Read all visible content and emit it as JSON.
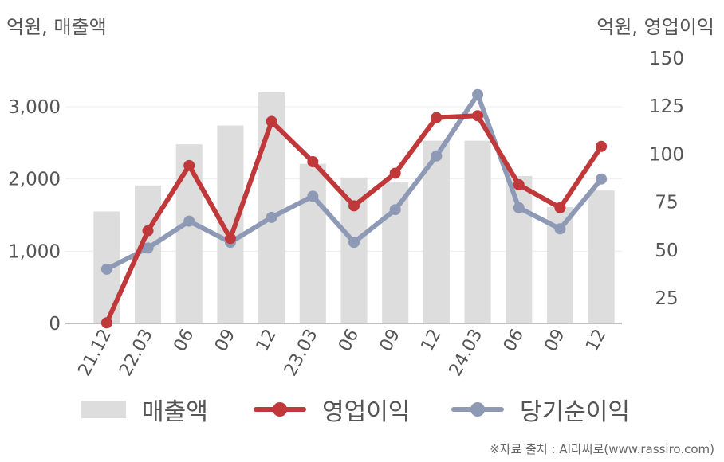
{
  "chart_data": {
    "type": "bar",
    "categories": [
      "21.12",
      "22.03",
      "06",
      "09",
      "12",
      "23.03",
      "06",
      "09",
      "12",
      "24.03",
      "06",
      "09",
      "12"
    ],
    "series": [
      {
        "name": "매출액",
        "type": "bar",
        "axis": "left",
        "color": "#dddddd",
        "values": [
          1550,
          1910,
          2480,
          2740,
          3200,
          2210,
          2020,
          1960,
          2530,
          2530,
          2040,
          1610,
          1840
        ]
      },
      {
        "name": "영업이익",
        "type": "line",
        "axis": "right",
        "color": "#c0383a",
        "values": [
          12,
          60,
          94,
          56,
          117,
          96,
          73,
          90,
          119,
          120,
          84,
          72,
          104
        ]
      },
      {
        "name": "당기순이익",
        "type": "line",
        "axis": "right",
        "color": "#8e9ab5",
        "values": [
          40,
          51,
          65,
          54,
          67,
          78,
          54,
          71,
          99,
          131,
          72,
          61,
          87
        ]
      }
    ],
    "ylabel_left": "억원, 매출액",
    "ylabel_right": "억원, 영업이익",
    "ylim_left": [
      0,
      3500
    ],
    "ylim_right": [
      10,
      150
    ],
    "yticks_left": [
      {
        "value": 0,
        "label": "0"
      },
      {
        "value": 1000,
        "label": "1,000"
      },
      {
        "value": 2000,
        "label": "2,000"
      },
      {
        "value": 3000,
        "label": "3,000"
      }
    ],
    "yticks_right": [
      {
        "value": 25,
        "label": "25"
      },
      {
        "value": 50,
        "label": "50"
      },
      {
        "value": 75,
        "label": "75"
      },
      {
        "value": 100,
        "label": "100"
      },
      {
        "value": 125,
        "label": "125"
      },
      {
        "value": 150,
        "label": "150"
      }
    ],
    "grid": true,
    "legend_position": "bottom",
    "source": "※자료 출처 : AI라씨로(www.rassiro.com)"
  }
}
